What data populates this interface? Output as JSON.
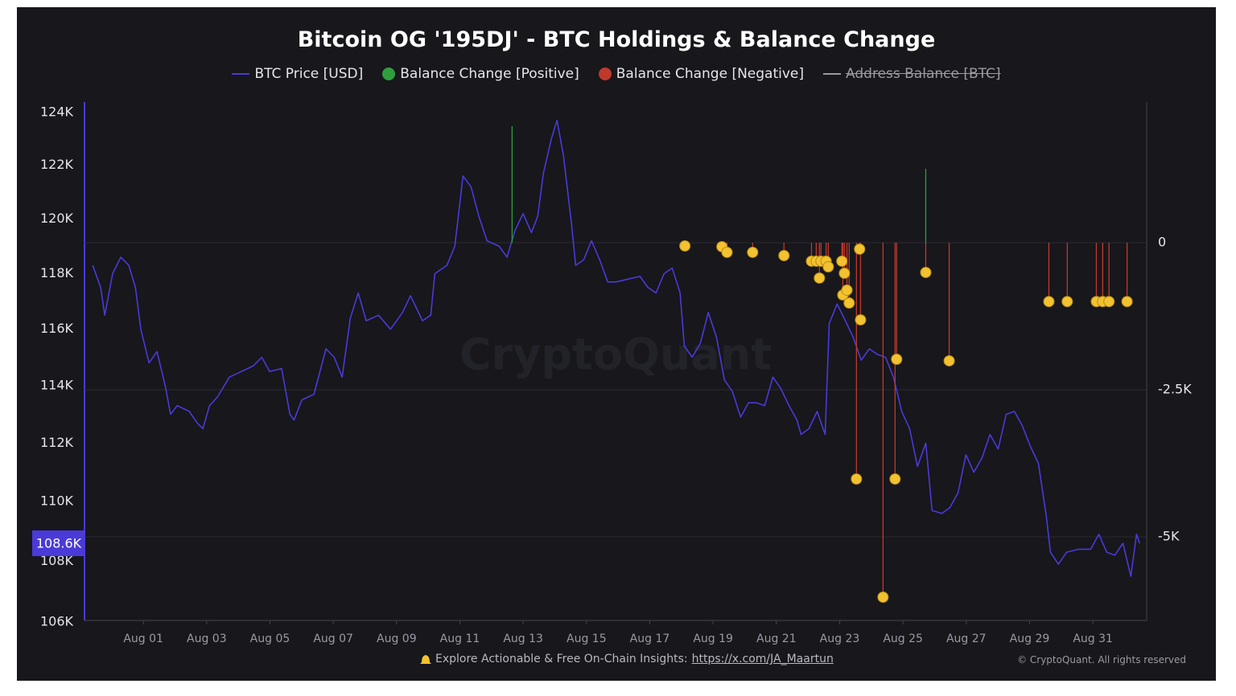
{
  "chart_data": {
    "type": "line",
    "title": "Bitcoin OG '195DJ' - BTC Holdings & Balance Change",
    "y_scale": "log",
    "ylim": [
      106050,
      124400
    ],
    "yticks": [
      {
        "value": 106000,
        "label": "106K"
      },
      {
        "value": 108000,
        "label": "108K"
      },
      {
        "value": 110000,
        "label": "110K"
      },
      {
        "value": 112000,
        "label": "112K"
      },
      {
        "value": 114000,
        "label": "114K"
      },
      {
        "value": 116000,
        "label": "116K"
      },
      {
        "value": 118000,
        "label": "118K"
      },
      {
        "value": 120000,
        "label": "120K"
      },
      {
        "value": 122000,
        "label": "122K"
      },
      {
        "value": 124000,
        "label": "124K"
      }
    ],
    "y2lim": [
      -6420,
      2390
    ],
    "y2ticks": [
      0,
      {
        "value": -2500,
        "label": "-2.5K"
      },
      {
        "value": -5000,
        "label": "-5K"
      }
    ],
    "grid": true,
    "xlim": [
      -0.86,
      32.7
    ],
    "xticks": [
      {
        "value": 1,
        "label": "Aug 01"
      },
      {
        "value": 3,
        "label": "Aug 03"
      },
      {
        "value": 5,
        "label": "Aug 05"
      },
      {
        "value": 7,
        "label": "Aug 07"
      },
      {
        "value": 9,
        "label": "Aug 09"
      },
      {
        "value": 11,
        "label": "Aug 11"
      },
      {
        "value": 13,
        "label": "Aug 13"
      },
      {
        "value": 15,
        "label": "Aug 15"
      },
      {
        "value": 17,
        "label": "Aug 17"
      },
      {
        "value": 19,
        "label": "Aug 19"
      },
      {
        "value": 21,
        "label": "Aug 21"
      },
      {
        "value": 23,
        "label": "Aug 23"
      },
      {
        "value": 25,
        "label": "Aug 25"
      },
      {
        "value": 27,
        "label": "Aug 27"
      },
      {
        "value": 29,
        "label": "Aug 29"
      },
      {
        "value": 31,
        "label": "Aug 31"
      }
    ],
    "price_marker": {
      "value": 108600,
      "label": "108.6K"
    },
    "watermark": "CryptoQuant",
    "series": [
      {
        "name": "BTC Price [USD]",
        "color": "#4a3ad8",
        "kind": "line",
        "x": [
          -0.6,
          -0.35,
          -0.22,
          0.03,
          0.29,
          0.54,
          0.75,
          0.92,
          1.18,
          1.43,
          1.69,
          1.86,
          2.07,
          2.45,
          2.7,
          2.88,
          3.09,
          3.34,
          3.72,
          4.1,
          4.48,
          4.74,
          4.99,
          5.37,
          5.63,
          5.76,
          6.01,
          6.39,
          6.77,
          7.03,
          7.28,
          7.54,
          7.79,
          8.04,
          8.43,
          8.81,
          9.19,
          9.44,
          9.82,
          10.08,
          10.21,
          10.59,
          10.84,
          11.1,
          11.35,
          11.6,
          11.86,
          12.24,
          12.49,
          12.75,
          13.0,
          13.26,
          13.46,
          13.64,
          13.89,
          14.07,
          14.27,
          14.53,
          14.66,
          14.91,
          15.16,
          15.42,
          15.67,
          15.93,
          16.31,
          16.69,
          16.94,
          17.2,
          17.45,
          17.71,
          17.96,
          18.09,
          18.34,
          18.6,
          18.85,
          19.11,
          19.36,
          19.61,
          19.87,
          20.12,
          20.38,
          20.63,
          20.89,
          21.14,
          21.4,
          21.65,
          21.78,
          22.03,
          22.29,
          22.54,
          22.67,
          22.92,
          23.18,
          23.43,
          23.68,
          23.94,
          24.19,
          24.45,
          24.7,
          24.96,
          25.21,
          25.46,
          25.72,
          25.92,
          26.23,
          26.48,
          26.74,
          26.99,
          27.24,
          27.5,
          27.75,
          28.01,
          28.26,
          28.52,
          28.77,
          29.02,
          29.28,
          29.53,
          29.66,
          29.91,
          30.17,
          30.55,
          30.93,
          31.19,
          31.44,
          31.69,
          31.95,
          32.2,
          32.38,
          32.48
        ],
        "values": [
          118300,
          117500,
          116500,
          118000,
          118600,
          118300,
          117500,
          116000,
          114800,
          115200,
          114000,
          113000,
          113300,
          113100,
          112700,
          112500,
          113300,
          113600,
          114300,
          114500,
          114700,
          115000,
          114500,
          114600,
          113000,
          112800,
          113500,
          113700,
          115300,
          115000,
          114300,
          116400,
          117300,
          116300,
          116500,
          116000,
          116600,
          117200,
          116300,
          116500,
          118000,
          118300,
          119000,
          121600,
          121200,
          120100,
          119200,
          119000,
          118600,
          119600,
          120200,
          119500,
          120100,
          121700,
          123000,
          123700,
          122400,
          119800,
          118300,
          118500,
          119200,
          118500,
          117700,
          117700,
          117800,
          117900,
          117500,
          117300,
          118000,
          118200,
          117300,
          115400,
          115000,
          115500,
          116600,
          115700,
          114200,
          113800,
          112900,
          113400,
          113400,
          113300,
          114300,
          113900,
          113300,
          112800,
          112300,
          112500,
          113100,
          112300,
          116200,
          116900,
          116300,
          115700,
          114900,
          115300,
          115100,
          115000,
          114300,
          113100,
          112500,
          111200,
          112000,
          109700,
          109600,
          109800,
          110300,
          111600,
          111000,
          111500,
          112300,
          111800,
          113000,
          113100,
          112600,
          111900,
          111300,
          109500,
          108300,
          107900,
          108300,
          108400,
          108400,
          108900,
          108300,
          108200,
          108600,
          107500,
          108900,
          108600
        ]
      },
      {
        "name": "Balance Change [Positive]",
        "color": "#2e9e3e",
        "kind": "stem",
        "axis": "y2",
        "x": [
          12.65,
          25.72
        ],
        "values": [
          1980,
          1257
        ]
      },
      {
        "name": "Balance Change [Negative]",
        "color": "#c0392b",
        "kind": "stem",
        "axis": "y2",
        "marker_color": "#f2c230",
        "x": [
          18.11,
          19.28,
          19.44,
          20.25,
          21.24,
          22.11,
          22.26,
          22.36,
          22.41,
          22.57,
          22.64,
          23.07,
          23.1,
          23.15,
          23.23,
          23.3,
          23.53,
          23.63,
          23.66,
          24.37,
          24.75,
          24.8,
          25.72,
          26.46,
          29.61,
          30.19,
          31.11,
          31.31,
          31.51,
          32.08
        ],
        "values": [
          -55,
          -68,
          -164,
          -164,
          -219,
          -314,
          -314,
          -601,
          -314,
          -314,
          -410,
          -314,
          -888,
          -519,
          -806,
          -1025,
          -4016,
          -109,
          -1311,
          -6024,
          -4016,
          -1981,
          -505,
          -2008,
          -1000,
          -1000,
          -1000,
          -1000,
          -1000,
          -1000
        ]
      },
      {
        "name": "Address Balance [BTC]",
        "color": "#9a9aa0",
        "kind": "line",
        "axis": "y2",
        "hidden": true,
        "x": [],
        "values": []
      }
    ],
    "footer": {
      "text": "Explore Actionable & Free On-Chain Insights:",
      "link": "https://x.com/JA_Maartun",
      "copyright": "© CryptoQuant. All rights reserved"
    }
  }
}
